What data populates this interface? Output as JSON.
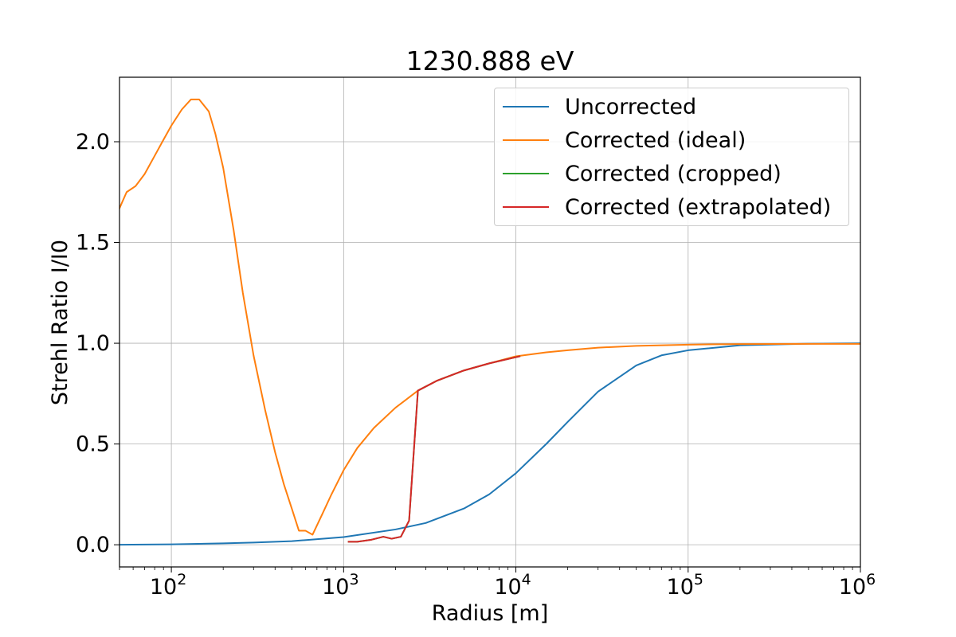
{
  "chart_data": {
    "type": "line",
    "title": "1230.888 eV",
    "xlabel": "Radius [m]",
    "ylabel": "Strehl Ratio I/I0",
    "xscale": "log",
    "xlim": [
      50,
      1000000
    ],
    "ylim": [
      -0.11,
      2.32
    ],
    "xticks": [
      {
        "value": 100,
        "base": "10",
        "exp": "2"
      },
      {
        "value": 1000,
        "base": "10",
        "exp": "3"
      },
      {
        "value": 10000,
        "base": "10",
        "exp": "4"
      },
      {
        "value": 100000,
        "base": "10",
        "exp": "5"
      },
      {
        "value": 1000000,
        "base": "10",
        "exp": "6"
      }
    ],
    "yticks": [
      {
        "value": 0.0,
        "label": "0.0"
      },
      {
        "value": 0.5,
        "label": "0.5"
      },
      {
        "value": 1.0,
        "label": "1.0"
      },
      {
        "value": 1.5,
        "label": "1.5"
      },
      {
        "value": 2.0,
        "label": "2.0"
      }
    ],
    "grid": true,
    "legend_position": "top-right",
    "series": [
      {
        "name": "Uncorrected",
        "color": "#1f77b4",
        "x": [
          50,
          100,
          200,
          300,
          500,
          1000,
          2000,
          3000,
          5000,
          7000,
          10000,
          15000,
          20000,
          30000,
          50000,
          70000,
          100000,
          200000,
          500000,
          1000000
        ],
        "y": [
          0.0,
          0.002,
          0.007,
          0.011,
          0.018,
          0.038,
          0.076,
          0.108,
          0.18,
          0.25,
          0.355,
          0.5,
          0.61,
          0.76,
          0.89,
          0.94,
          0.965,
          0.99,
          0.998,
          1.0
        ]
      },
      {
        "name": "Corrected (ideal)",
        "color": "#ff7f0e",
        "x": [
          50,
          55,
          62,
          70,
          80,
          90,
          100,
          115,
          130,
          145,
          165,
          180,
          200,
          230,
          260,
          300,
          350,
          400,
          450,
          500,
          550,
          600,
          660,
          750,
          850,
          1000,
          1200,
          1500,
          2000,
          2700,
          3500,
          5000,
          7000,
          10000,
          15000,
          20000,
          30000,
          50000,
          100000,
          200000,
          500000,
          1000000
        ],
        "y": [
          1.67,
          1.75,
          1.78,
          1.84,
          1.93,
          2.01,
          2.08,
          2.16,
          2.21,
          2.21,
          2.15,
          2.04,
          1.87,
          1.56,
          1.25,
          0.94,
          0.67,
          0.46,
          0.3,
          0.18,
          0.07,
          0.07,
          0.05,
          0.15,
          0.25,
          0.37,
          0.48,
          0.58,
          0.68,
          0.765,
          0.815,
          0.865,
          0.9,
          0.935,
          0.955,
          0.965,
          0.978,
          0.987,
          0.993,
          0.996,
          0.997,
          0.997
        ]
      },
      {
        "name": "Corrected (cropped)",
        "color": "#2ca02c",
        "x": [
          1070,
          1200,
          1450,
          1700,
          1900,
          2150,
          2400,
          2700,
          3500,
          5000,
          7000,
          10500
        ],
        "y": [
          0.015,
          0.015,
          0.025,
          0.04,
          0.03,
          0.04,
          0.12,
          0.765,
          0.815,
          0.865,
          0.9,
          0.935
        ]
      },
      {
        "name": "Corrected (extrapolated)",
        "color": "#d62728",
        "x": [
          1070,
          1200,
          1450,
          1700,
          1900,
          2150,
          2400,
          2700,
          3500,
          5000,
          7000,
          10500
        ],
        "y": [
          0.015,
          0.015,
          0.025,
          0.04,
          0.03,
          0.04,
          0.12,
          0.765,
          0.815,
          0.865,
          0.9,
          0.935
        ]
      }
    ]
  }
}
